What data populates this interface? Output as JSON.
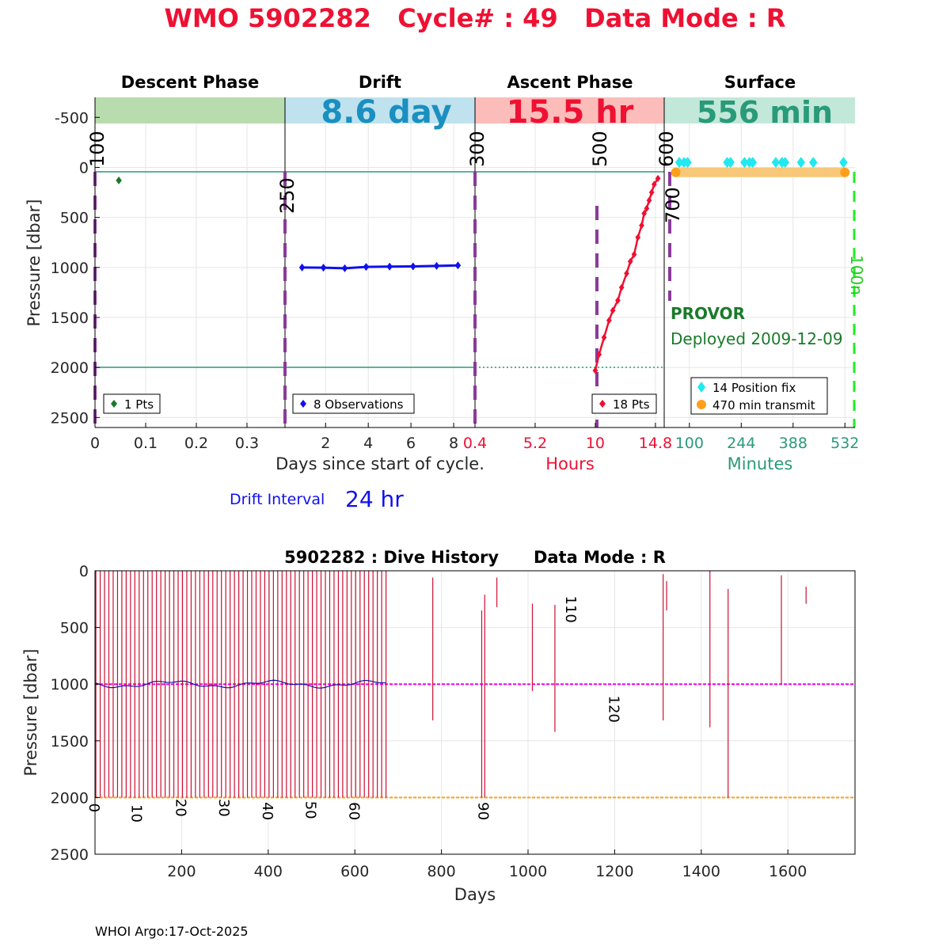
{
  "header": {
    "title": "WMO 5902282   Cycle# : 49   Data Mode : R"
  },
  "colors": {
    "title": "#ee1133",
    "descent": "#1a7a2a",
    "drift": "#1010ee",
    "ascent": "#ee1133",
    "surface": "#2a9a78",
    "vline": "#8a3a9a",
    "cyan": "#22e8f0",
    "orange": "#ff9f1c",
    "green_dash": "#22ee22",
    "magenta": "#ee00ee"
  },
  "chart_data": [
    {
      "type": "scatter",
      "panel": "descent",
      "title": "Descent Phase",
      "banner": "",
      "ylabel": "Pressure [dbar]",
      "ylim": [
        2600,
        -700
      ],
      "yticks": [
        -500,
        0,
        500,
        1000,
        1500,
        2000,
        2500
      ],
      "xlim": [
        0,
        0.375
      ],
      "xticks": [
        {
          "v": 0,
          "l": "0"
        },
        {
          "v": 0.1,
          "l": "0.1"
        },
        {
          "v": 0.2,
          "l": "0.2"
        },
        {
          "v": 0.3,
          "l": "0.3"
        }
      ],
      "points": [
        {
          "x": 0.047,
          "y": 130
        }
      ],
      "legend": "1 Pts",
      "marker_labels": [
        {
          "x": 0,
          "label": "100"
        }
      ]
    },
    {
      "type": "line",
      "panel": "drift",
      "title": "Drift",
      "banner": "8.6 day",
      "xlim": [
        0.1,
        9.0
      ],
      "xticks": [
        {
          "v": 2,
          "l": "2"
        },
        {
          "v": 4,
          "l": "4"
        },
        {
          "v": 6,
          "l": "6"
        },
        {
          "v": 8,
          "l": "8"
        }
      ],
      "points": [
        {
          "x": 0.9,
          "y": 1000
        },
        {
          "x": 1.9,
          "y": 1002
        },
        {
          "x": 2.9,
          "y": 1008
        },
        {
          "x": 3.9,
          "y": 995
        },
        {
          "x": 5.0,
          "y": 992
        },
        {
          "x": 6.1,
          "y": 990
        },
        {
          "x": 7.2,
          "y": 985
        },
        {
          "x": 8.2,
          "y": 980
        }
      ],
      "legend": "8 Observations",
      "marker_labels": [
        {
          "x": 0,
          "label": "250"
        }
      ]
    },
    {
      "type": "line",
      "panel": "ascent",
      "title": "Ascent Phase",
      "banner": "15.5 hr",
      "xlabel": "Hours",
      "xlim": [
        0.4,
        15.5
      ],
      "xticks": [
        {
          "v": 0.4,
          "l": "0.4"
        },
        {
          "v": 5.2,
          "l": "5.2"
        },
        {
          "v": 10,
          "l": "10"
        },
        {
          "v": 14.8,
          "l": "14.8"
        }
      ],
      "points": [
        {
          "x": 10.0,
          "y": 2030
        },
        {
          "x": 10.3,
          "y": 1870
        },
        {
          "x": 10.7,
          "y": 1700
        },
        {
          "x": 11.1,
          "y": 1530
        },
        {
          "x": 11.4,
          "y": 1430
        },
        {
          "x": 11.8,
          "y": 1330
        },
        {
          "x": 12.1,
          "y": 1200
        },
        {
          "x": 12.5,
          "y": 1060
        },
        {
          "x": 12.8,
          "y": 940
        },
        {
          "x": 13.1,
          "y": 870
        },
        {
          "x": 13.4,
          "y": 700
        },
        {
          "x": 13.7,
          "y": 580
        },
        {
          "x": 13.9,
          "y": 460
        },
        {
          "x": 14.1,
          "y": 410
        },
        {
          "x": 14.3,
          "y": 330
        },
        {
          "x": 14.5,
          "y": 250
        },
        {
          "x": 14.7,
          "y": 170
        },
        {
          "x": 15.0,
          "y": 110
        }
      ],
      "legend": "18 Pts",
      "marker_labels": [
        {
          "x": 0.4,
          "label": "300"
        },
        {
          "x": 10,
          "label": "500"
        },
        {
          "x": 15.5,
          "label": "600"
        }
      ]
    },
    {
      "type": "scatter",
      "panel": "surface",
      "title": "Surface",
      "banner": "556 min",
      "xlabel": "Minutes",
      "xlim": [
        30,
        560
      ],
      "xticks": [
        {
          "v": 100,
          "l": "100"
        },
        {
          "v": 244,
          "l": "244"
        },
        {
          "v": 388,
          "l": "388"
        },
        {
          "v": 532,
          "l": "532"
        }
      ],
      "position_fixes": [
        {
          "x": 72,
          "y": -50
        },
        {
          "x": 85,
          "y": -50
        },
        {
          "x": 95,
          "y": -50
        },
        {
          "x": 205,
          "y": -50
        },
        {
          "x": 214,
          "y": -50
        },
        {
          "x": 253,
          "y": -50
        },
        {
          "x": 267,
          "y": -50
        },
        {
          "x": 276,
          "y": -50
        },
        {
          "x": 340,
          "y": -50
        },
        {
          "x": 357,
          "y": -50
        },
        {
          "x": 366,
          "y": -50
        },
        {
          "x": 410,
          "y": -50
        },
        {
          "x": 444,
          "y": -50
        },
        {
          "x": 528,
          "y": -50
        }
      ],
      "transmit": {
        "start": 62,
        "end": 532,
        "y": 50
      },
      "legend": [
        "14 Position fix",
        "470 min transmit"
      ],
      "marker_labels": [
        {
          "x": 30,
          "label": "700"
        },
        {
          "x": 560,
          "label": "100n"
        }
      ]
    }
  ],
  "top_xlabel": "Days since start of cycle.",
  "float_info": {
    "model": "PROVOR",
    "deployed": "Deployed 2009-12-09"
  },
  "drift_info": {
    "label": "Drift Interval",
    "value": "24 hr"
  },
  "dive_history": {
    "type": "bar",
    "title": "5902282 : Dive History      Data Mode : R",
    "xlabel": "Days",
    "ylabel": "Pressure [dbar]",
    "xlim": [
      0,
      1755
    ],
    "ylim": [
      2500,
      0
    ],
    "xticks": [
      200,
      400,
      600,
      800,
      1000,
      1200,
      1400,
      1600
    ],
    "yticks": [
      0,
      500,
      1000,
      1500,
      2000,
      2500
    ],
    "reference_lines": [
      {
        "y": 1000,
        "color": "magenta"
      },
      {
        "y": 2000,
        "color": "orange"
      }
    ],
    "early_profiles": {
      "start_day": 2,
      "end_day": 672,
      "interval_days": 10,
      "top": 0,
      "bottom": 2000
    },
    "profiles": [
      {
        "day": 780,
        "top": 60,
        "bottom": 1320
      },
      {
        "day": 893,
        "top": 350,
        "bottom": 2000
      },
      {
        "day": 900,
        "top": 210,
        "bottom": 2000
      },
      {
        "day": 928,
        "top": 60,
        "bottom": 320
      },
      {
        "day": 1010,
        "top": 290,
        "bottom": 1060
      },
      {
        "day": 1062,
        "top": 300,
        "bottom": 1420
      },
      {
        "day": 1312,
        "top": 30,
        "bottom": 1320
      },
      {
        "day": 1320,
        "top": 90,
        "bottom": 350
      },
      {
        "day": 1420,
        "top": 0,
        "bottom": 1380
      },
      {
        "day": 1462,
        "top": 160,
        "bottom": 2000
      },
      {
        "day": 1585,
        "top": 40,
        "bottom": 1000
      },
      {
        "day": 1642,
        "top": 140,
        "bottom": 290
      }
    ],
    "cycle_labels": [
      {
        "day": 2,
        "y": 2090,
        "label": "0"
      },
      {
        "day": 100,
        "y": 2140,
        "label": "10"
      },
      {
        "day": 202,
        "y": 2090,
        "label": "20"
      },
      {
        "day": 302,
        "y": 2090,
        "label": "30"
      },
      {
        "day": 402,
        "y": 2120,
        "label": "40"
      },
      {
        "day": 502,
        "y": 2110,
        "label": "50"
      },
      {
        "day": 602,
        "y": 2120,
        "label": "60"
      },
      {
        "day": 900,
        "y": 2120,
        "label": "90"
      },
      {
        "day": 1102,
        "y": 340,
        "label": "110"
      },
      {
        "day": 1202,
        "y": 1220,
        "label": "120"
      }
    ]
  },
  "footer": {
    "text": "WHOI Argo:17-Oct-2025"
  }
}
